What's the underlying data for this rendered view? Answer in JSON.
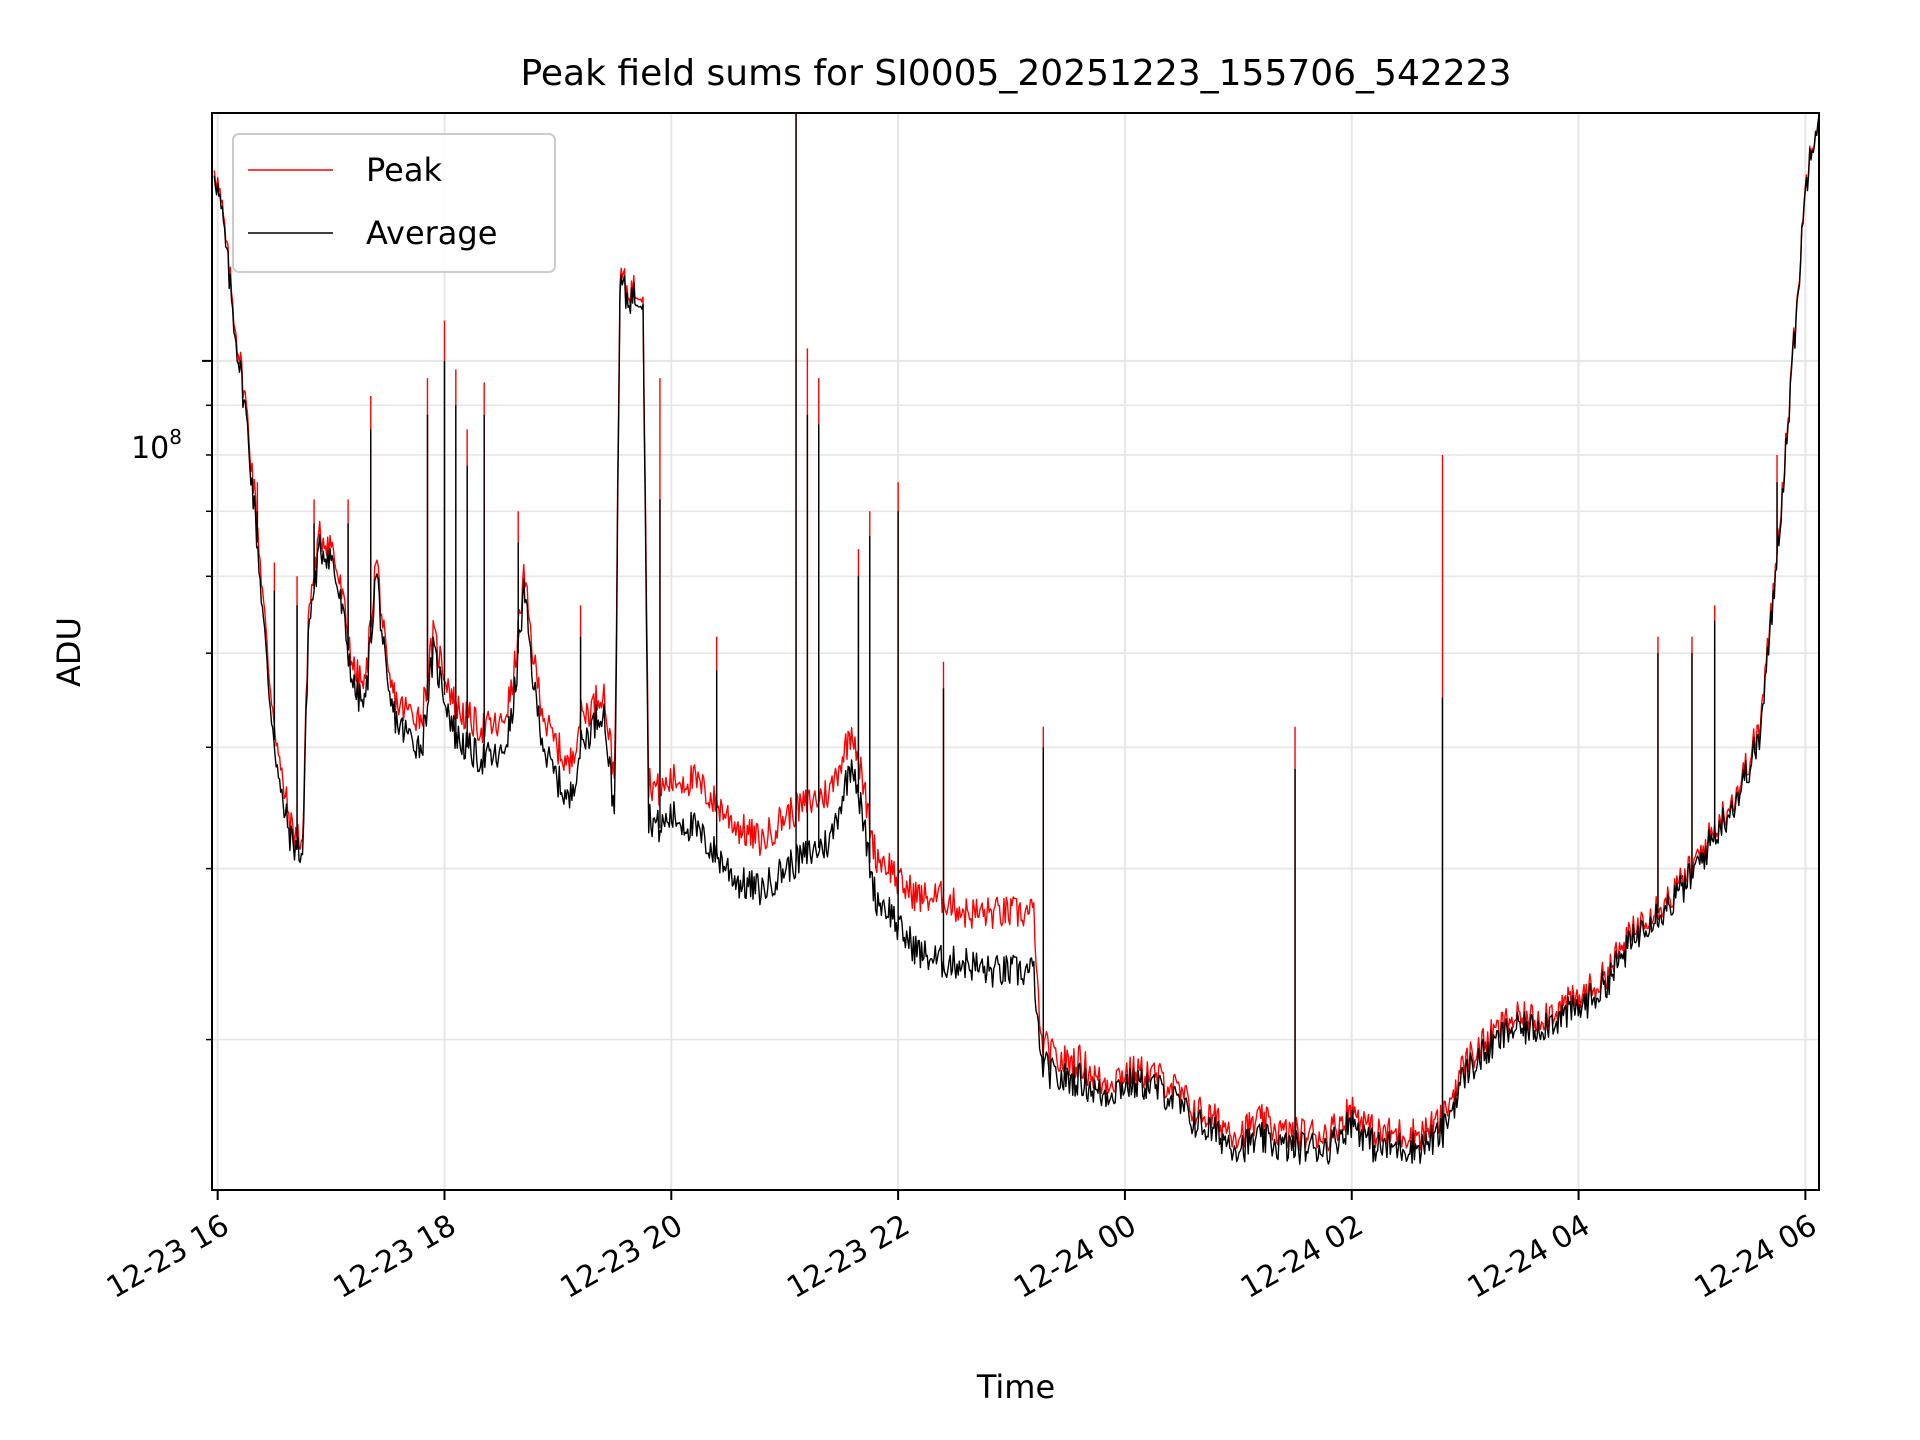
{
  "chart_data": {
    "type": "line",
    "title": "Peak field sums for SI0005_20251223_155706_542223",
    "xlabel": "Time",
    "ylabel": "ADU",
    "yscale": "log",
    "ylim": [
      14000000,
      180000000
    ],
    "xlim_hours": [
      15.95,
      30.12
    ],
    "grid": true,
    "legend_position": "top-left",
    "x_tick_labels": [
      "12-23 16",
      "12-23 18",
      "12-23 20",
      "12-23 22",
      "12-24 00",
      "12-24 02",
      "12-24 04",
      "12-24 06"
    ],
    "x_tick_hours": [
      16,
      18,
      20,
      22,
      24,
      26,
      28,
      30
    ],
    "y_tick_label": {
      "base": "10",
      "exp": "8"
    },
    "y_major_tick_value": 100000000,
    "y_minor_tick_values": [
      20000000,
      30000000,
      40000000,
      50000000,
      60000000,
      70000000,
      80000000,
      90000000
    ],
    "series": [
      {
        "name": "Peak",
        "color": "#ff0000",
        "x_hours": [
          15.97,
          16.05,
          16.15,
          16.25,
          16.35,
          16.45,
          16.55,
          16.65,
          16.75,
          16.8,
          16.9,
          17.0,
          17.1,
          17.2,
          17.3,
          17.4,
          17.5,
          17.6,
          17.8,
          17.9,
          18.1,
          18.3,
          18.5,
          18.6,
          18.7,
          18.8,
          18.9,
          19.0,
          19.1,
          19.2,
          19.3,
          19.4,
          19.5,
          19.55,
          19.6,
          19.75,
          19.8,
          19.9,
          20.0,
          20.2,
          20.4,
          20.6,
          20.8,
          21.0,
          21.2,
          21.4,
          21.6,
          21.8,
          21.95,
          22.0,
          22.2,
          22.4,
          22.6,
          22.8,
          23.0,
          23.2,
          23.25,
          23.4,
          23.6,
          23.8,
          24.0,
          24.2,
          24.4,
          24.6,
          24.8,
          25.0,
          25.2,
          25.4,
          25.6,
          25.8,
          26.0,
          26.2,
          26.4,
          26.6,
          26.8,
          27.0,
          27.2,
          27.4,
          27.6,
          27.8,
          28.0,
          28.2,
          28.4,
          28.6,
          28.8,
          29.0,
          29.2,
          29.4,
          29.6,
          29.7,
          29.8,
          29.9,
          30.0,
          30.05,
          30.12
        ],
        "values": [
          160000000,
          140000000,
          110000000,
          90000000,
          68000000,
          48000000,
          38000000,
          33000000,
          32000000,
          55000000,
          66000000,
          65000000,
          57000000,
          48000000,
          46000000,
          63000000,
          47000000,
          44000000,
          43000000,
          52000000,
          44000000,
          42000000,
          42000000,
          46000000,
          60000000,
          48000000,
          42000000,
          40000000,
          38000000,
          43000000,
          44000000,
          46000000,
          37000000,
          125000000,
          118000000,
          119000000,
          37000000,
          36000000,
          37000000,
          37000000,
          35000000,
          33000000,
          32000000,
          34000000,
          35000000,
          36000000,
          42000000,
          31000000,
          30000000,
          29000000,
          28000000,
          28000000,
          27000000,
          27000000,
          27000000,
          27000000,
          20000000,
          19000000,
          19000000,
          18000000,
          18500000,
          18500000,
          18000000,
          17000000,
          16500000,
          16000000,
          16500000,
          16000000,
          16000000,
          16000000,
          17000000,
          16000000,
          16000000,
          16000000,
          16500000,
          19000000,
          20000000,
          21000000,
          21000000,
          21500000,
          22000000,
          23000000,
          25000000,
          27000000,
          28000000,
          30000000,
          33000000,
          36000000,
          42000000,
          55000000,
          75000000,
          105000000,
          150000000,
          168000000,
          180000000
        ]
      },
      {
        "name": "Average",
        "color": "#000000",
        "x_hours": [
          15.97,
          16.05,
          16.15,
          16.25,
          16.35,
          16.45,
          16.55,
          16.65,
          16.75,
          16.8,
          16.9,
          17.0,
          17.1,
          17.2,
          17.3,
          17.4,
          17.5,
          17.6,
          17.8,
          17.9,
          18.1,
          18.3,
          18.5,
          18.6,
          18.7,
          18.8,
          18.9,
          19.0,
          19.1,
          19.2,
          19.3,
          19.4,
          19.5,
          19.55,
          19.6,
          19.75,
          19.8,
          19.9,
          20.0,
          20.2,
          20.4,
          20.6,
          20.8,
          21.0,
          21.2,
          21.4,
          21.6,
          21.8,
          21.95,
          22.0,
          22.2,
          22.4,
          22.6,
          22.8,
          23.0,
          23.2,
          23.25,
          23.4,
          23.6,
          23.8,
          24.0,
          24.2,
          24.4,
          24.6,
          24.8,
          25.0,
          25.2,
          25.4,
          25.6,
          25.8,
          26.0,
          26.2,
          26.4,
          26.6,
          26.8,
          27.0,
          27.2,
          27.4,
          27.6,
          27.8,
          28.0,
          28.2,
          28.4,
          28.6,
          28.8,
          29.0,
          29.2,
          29.4,
          29.6,
          29.7,
          29.8,
          29.9,
          30.0,
          30.05,
          30.12
        ],
        "values": [
          158000000,
          138000000,
          108000000,
          88000000,
          65000000,
          46000000,
          36000000,
          32000000,
          31000000,
          53000000,
          64000000,
          63000000,
          55000000,
          46000000,
          44000000,
          61000000,
          45000000,
          42000000,
          40000000,
          50000000,
          41000000,
          39000000,
          39000000,
          43000000,
          58000000,
          45000000,
          39000000,
          37000000,
          35000000,
          40000000,
          42000000,
          44000000,
          34000000,
          123000000,
          116000000,
          117000000,
          34000000,
          33000000,
          34000000,
          33000000,
          31000000,
          29000000,
          28500000,
          30000000,
          31000000,
          32000000,
          39000000,
          28000000,
          27000000,
          26000000,
          24500000,
          24000000,
          24000000,
          23500000,
          23500000,
          23500000,
          19000000,
          18200000,
          18200000,
          17500000,
          18000000,
          18000000,
          17500000,
          16500000,
          16000000,
          15500000,
          15800000,
          15500000,
          15500000,
          15500000,
          16500000,
          15500000,
          15500000,
          15500000,
          16000000,
          18500000,
          19500000,
          20500000,
          20500000,
          21000000,
          21500000,
          22500000,
          24500000,
          26500000,
          27500000,
          29500000,
          32500000,
          35500000,
          41000000,
          54000000,
          74000000,
          104000000,
          149000000,
          167000000,
          180000000
        ]
      }
    ],
    "spikes": [
      {
        "hour": 16.35,
        "values": [
          75000000,
          70000000
        ]
      },
      {
        "hour": 16.5,
        "values": [
          62000000,
          58000000
        ]
      },
      {
        "hour": 16.7,
        "values": [
          60000000,
          56000000
        ]
      },
      {
        "hour": 16.85,
        "values": [
          72000000,
          68000000
        ]
      },
      {
        "hour": 17.15,
        "values": [
          72000000,
          68000000
        ]
      },
      {
        "hour": 17.35,
        "values": [
          92000000,
          85000000
        ]
      },
      {
        "hour": 17.85,
        "values": [
          96000000,
          88000000
        ]
      },
      {
        "hour": 18.0,
        "values": [
          110000000,
          100000000
        ]
      },
      {
        "hour": 18.1,
        "values": [
          98000000,
          90000000
        ]
      },
      {
        "hour": 18.2,
        "values": [
          85000000,
          78000000
        ]
      },
      {
        "hour": 18.35,
        "values": [
          95000000,
          88000000
        ]
      },
      {
        "hour": 18.65,
        "values": [
          70000000,
          65000000
        ]
      },
      {
        "hour": 19.2,
        "values": [
          56000000,
          52000000
        ]
      },
      {
        "hour": 19.9,
        "values": [
          96000000,
          72000000
        ]
      },
      {
        "hour": 20.4,
        "values": [
          52000000,
          48000000
        ]
      },
      {
        "hour": 21.1,
        "values": [
          180000000,
          180000000
        ]
      },
      {
        "hour": 21.2,
        "values": [
          103000000,
          88000000
        ]
      },
      {
        "hour": 21.3,
        "values": [
          96000000,
          86000000
        ]
      },
      {
        "hour": 21.65,
        "values": [
          64000000,
          60000000
        ]
      },
      {
        "hour": 21.75,
        "values": [
          70000000,
          66000000
        ]
      },
      {
        "hour": 22.0,
        "values": [
          75000000,
          70000000
        ]
      },
      {
        "hour": 22.4,
        "values": [
          49000000,
          46000000
        ]
      },
      {
        "hour": 23.28,
        "values": [
          42000000,
          40000000
        ]
      },
      {
        "hour": 25.5,
        "values": [
          42000000,
          38000000
        ]
      },
      {
        "hour": 26.8,
        "values": [
          80000000,
          45000000
        ]
      },
      {
        "hour": 28.7,
        "values": [
          52000000,
          50000000
        ]
      },
      {
        "hour": 29.0,
        "values": [
          52000000,
          50000000
        ]
      },
      {
        "hour": 29.2,
        "values": [
          56000000,
          54000000
        ]
      },
      {
        "hour": 29.75,
        "values": [
          80000000,
          75000000
        ]
      }
    ]
  }
}
